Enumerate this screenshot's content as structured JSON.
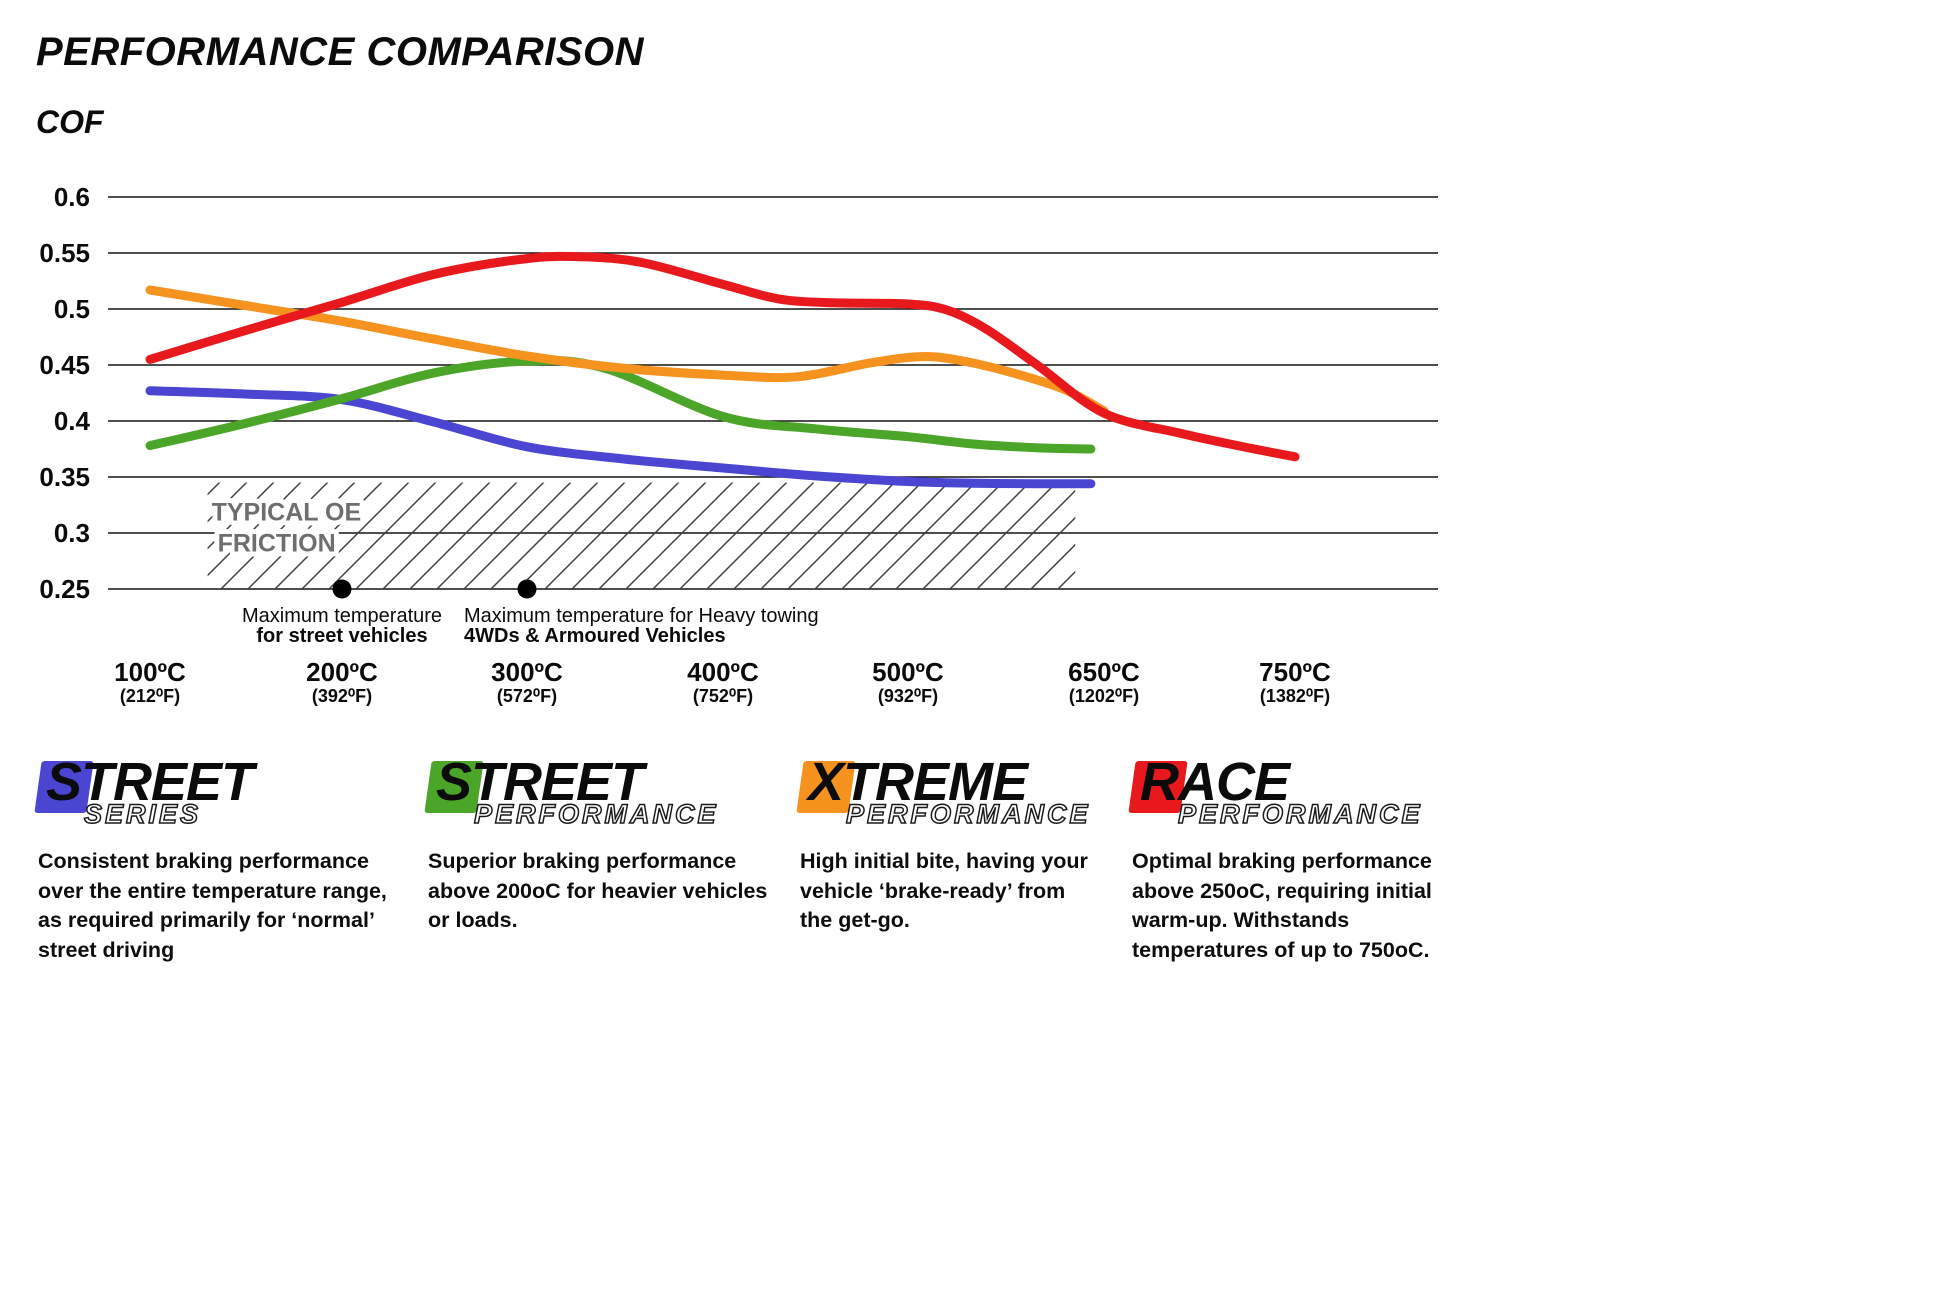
{
  "title": "PERFORMANCE COMPARISON",
  "chart_data": {
    "type": "line",
    "title": "PERFORMANCE COMPARISON",
    "ylabel": "COF",
    "ylim": [
      0.25,
      0.6
    ],
    "grid": true,
    "legend_position": "bottom",
    "y_ticks": [
      0.6,
      0.55,
      0.5,
      0.45,
      0.4,
      0.35,
      0.3,
      0.25
    ],
    "x_ticks": [
      {
        "temp": 100,
        "label": "100ºC",
        "sub": "(212⁰F)"
      },
      {
        "temp": 200,
        "label": "200ºC",
        "sub": "(392⁰F)"
      },
      {
        "temp": 300,
        "label": "300ºC",
        "sub": "(572⁰F)"
      },
      {
        "temp": 400,
        "label": "400ºC",
        "sub": "(752⁰F)"
      },
      {
        "temp": 500,
        "label": "500ºC",
        "sub": "(932⁰F)"
      },
      {
        "temp": 650,
        "label": "650ºC",
        "sub": "(1202⁰F)"
      },
      {
        "temp": 750,
        "label": "750ºC",
        "sub": "(1382⁰F)"
      }
    ],
    "series": [
      {
        "name": "Street Series",
        "color": "#4b46d2",
        "points": [
          [
            100,
            0.427
          ],
          [
            150,
            0.424
          ],
          [
            200,
            0.419
          ],
          [
            250,
            0.399
          ],
          [
            300,
            0.377
          ],
          [
            350,
            0.366
          ],
          [
            400,
            0.358
          ],
          [
            450,
            0.351
          ],
          [
            500,
            0.346
          ],
          [
            550,
            0.3445
          ],
          [
            600,
            0.344
          ],
          [
            640,
            0.344
          ]
        ]
      },
      {
        "name": "Street Performance",
        "color": "#4ba528",
        "points": [
          [
            100,
            0.378
          ],
          [
            150,
            0.398
          ],
          [
            200,
            0.42
          ],
          [
            250,
            0.443
          ],
          [
            300,
            0.4535
          ],
          [
            340,
            0.447
          ],
          [
            400,
            0.404
          ],
          [
            450,
            0.393
          ],
          [
            500,
            0.386
          ],
          [
            550,
            0.3795
          ],
          [
            600,
            0.376
          ],
          [
            640,
            0.375
          ]
        ]
      },
      {
        "name": "Xtreme Performance",
        "color": "#f6921e",
        "points": [
          [
            100,
            0.517
          ],
          [
            150,
            0.503
          ],
          [
            200,
            0.489
          ],
          [
            250,
            0.473
          ],
          [
            300,
            0.458
          ],
          [
            350,
            0.447
          ],
          [
            400,
            0.441
          ],
          [
            440,
            0.4395
          ],
          [
            480,
            0.452
          ],
          [
            510,
            0.4575
          ],
          [
            540,
            0.454
          ],
          [
            580,
            0.443
          ],
          [
            620,
            0.428
          ],
          [
            650,
            0.409
          ]
        ]
      },
      {
        "name": "Race Performance",
        "color": "#e8191c",
        "points": [
          [
            100,
            0.455
          ],
          [
            150,
            0.481
          ],
          [
            200,
            0.506
          ],
          [
            250,
            0.531
          ],
          [
            300,
            0.545
          ],
          [
            330,
            0.5465
          ],
          [
            360,
            0.541
          ],
          [
            400,
            0.522
          ],
          [
            430,
            0.509
          ],
          [
            460,
            0.5055
          ],
          [
            500,
            0.5045
          ],
          [
            530,
            0.499
          ],
          [
            560,
            0.482
          ],
          [
            600,
            0.449
          ],
          [
            650,
            0.407
          ],
          [
            690,
            0.389
          ],
          [
            720,
            0.378
          ],
          [
            750,
            0.368
          ]
        ]
      }
    ],
    "oe_band": {
      "line1": "TYPICAL OE",
      "line2": "FRICTION",
      "temp_start": 130,
      "temp_end": 628,
      "cof_top": 0.345,
      "cof_bottom": 0.25
    },
    "annotations": [
      {
        "temp": 200,
        "cof": 0.25,
        "line1": "Maximum temperature",
        "line2": "for street vehicles",
        "anchor": "middle",
        "dx": 0
      },
      {
        "temp": 300,
        "cof": 0.25,
        "line1": "Maximum temperature for Heavy towing",
        "line2": "4WDs & Armoured Vehicles",
        "anchor": "start",
        "dx": -63
      }
    ]
  },
  "legend": [
    {
      "word": "STREET",
      "sub": "SERIES",
      "color": "#4b46d2",
      "description": "Consistent braking performance over the entire temperature range, as required primarily for ‘normal’ street driving"
    },
    {
      "word": "STREET",
      "sub": "PERFORMANCE",
      "color": "#4ba528",
      "description": "Superior braking performance above 200oC for heavier vehicles or loads."
    },
    {
      "word": "XTREME",
      "sub": "PERFORMANCE",
      "color": "#f6921e",
      "description": "High initial bite, having your vehicle ‘brake-ready’ from the get-go."
    },
    {
      "word": "RACE",
      "sub": "PERFORMANCE",
      "color": "#e8191c",
      "description": "Optimal braking performance above 250oC, requiring initial warm-up. Withstands temperatures of up to 750oC."
    }
  ]
}
